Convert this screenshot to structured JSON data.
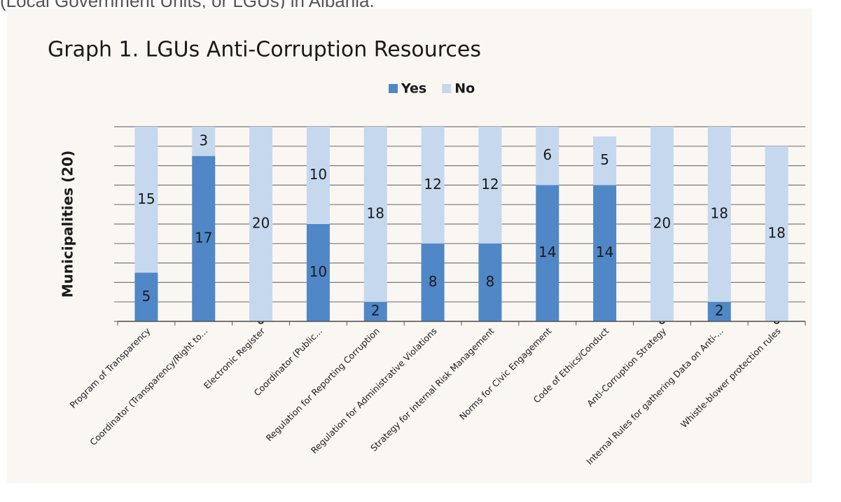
{
  "page_text": "(Local Government Units, or LGUs) in Albania.",
  "chart_data": {
    "type": "stacked_bar",
    "title": "Graph 1. LGUs Anti-Corruption Resources",
    "y_label": "Municipalities (20)",
    "categories": [
      "Program of Transparency",
      "Coordinator (Transparency/Right to...",
      "Electronic Register",
      "Coordinator (Public...",
      "Regulation for Reporting Corruption",
      "Regulation for Administrative Violations",
      "Strategy for Internal Risk Management",
      "Norms for Civic Engagement",
      "Code of Ethics/Conduct",
      "Anti-Corruption Strategy",
      "Internal Rules for gathering Data on Anti-...",
      "Whistle-blower protection rules"
    ],
    "series": [
      {
        "name": "Yes",
        "color": "#5087c7",
        "values": [
          5,
          17,
          0,
          10,
          2,
          8,
          8,
          14,
          14,
          0,
          2,
          0
        ]
      },
      {
        "name": "No",
        "color": "#c6d8ee",
        "values": [
          15,
          3,
          20,
          10,
          18,
          12,
          12,
          6,
          5,
          20,
          18,
          18
        ]
      }
    ],
    "ylim": [
      0,
      20
    ],
    "yticks": [
      0,
      2,
      4,
      6,
      8,
      10,
      12,
      14,
      16,
      18,
      20
    ],
    "grid": true,
    "legend": "top"
  }
}
